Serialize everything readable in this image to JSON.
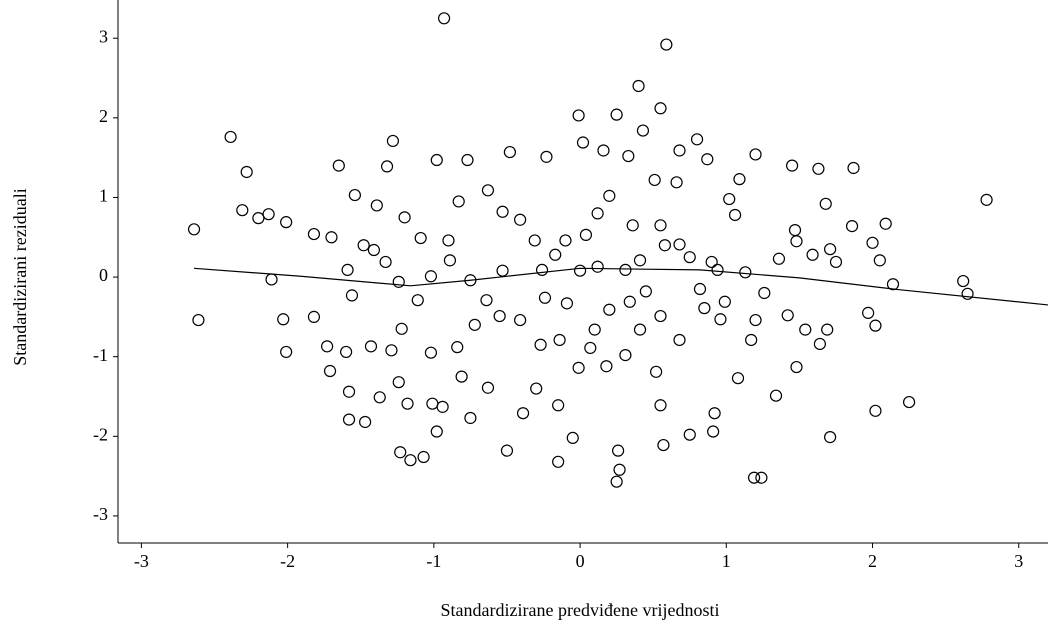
{
  "chart_data": {
    "type": "scatter",
    "x_label": "Standardizirane predviđene vrijednosti",
    "y_label": "Standardizirani reziduali",
    "xlim": [
      -3.16,
      3.2
    ],
    "ylim": [
      -3.34,
      3.48
    ],
    "xticks": [
      -3,
      -2,
      -1,
      0,
      1,
      2,
      3
    ],
    "yticks": [
      -3,
      -2,
      -1,
      0,
      1,
      2,
      3
    ],
    "color": "#000000",
    "marker": "open-circle",
    "x": [
      -2.64,
      -2.61,
      -2.39,
      -2.28,
      -2.31,
      -2.2,
      -2.13,
      -2.01,
      -2.11,
      -2.03,
      -2.01,
      -1.82,
      -0.93,
      0.59,
      0.4,
      -0.01,
      0.25,
      0.55,
      -1.65,
      -1.28,
      -1.32,
      -0.98,
      -0.77,
      -0.48,
      -0.23,
      0.02,
      0.16,
      0.33,
      0.43,
      0.68,
      0.8,
      0.87,
      1.2,
      1.45,
      1.63,
      1.87,
      1.02,
      1.09,
      2.78,
      1.68,
      1.86,
      2.0,
      2.05,
      2.09,
      2.14,
      1.97,
      2.02,
      2.02,
      2.25,
      2.62,
      2.65,
      1.71,
      1.19,
      1.24,
      0.25,
      0.27,
      0.26,
      -0.15,
      -0.5,
      -0.05,
      -1.16,
      -1.23,
      -1.07,
      -1.18,
      -0.98,
      -0.94,
      -1.01,
      -1.58,
      -1.58,
      -1.47,
      -1.37,
      -1.24,
      -1.71,
      -1.73,
      -1.6,
      -1.43,
      -1.22,
      -1.02,
      -0.84,
      -0.81,
      -0.75,
      -0.63,
      -0.39,
      -0.3,
      -0.15,
      -0.01,
      0.18,
      0.31,
      0.52,
      0.55,
      0.57,
      0.75,
      0.91,
      0.92,
      1.08,
      1.17,
      1.34,
      1.48,
      1.64,
      1.69,
      1.54,
      1.42,
      1.26,
      1.13,
      1.36,
      1.48,
      1.59,
      1.71,
      1.75,
      1.47,
      0.9,
      0.94,
      0.75,
      0.82,
      0.85,
      0.99,
      0.96,
      0.68,
      0.55,
      0.45,
      0.34,
      0.2,
      0.1,
      0.07,
      -0.14,
      -0.27,
      -0.41,
      -0.55,
      -0.64,
      -0.75,
      -0.89,
      -1.02,
      -1.11,
      -1.24,
      -1.33,
      -1.41,
      -1.48,
      -1.56,
      -1.59,
      -1.7,
      -1.54,
      -1.39,
      -1.2,
      -1.09,
      -0.9,
      -0.83,
      -0.63,
      -0.53,
      -0.41,
      -0.31,
      -0.17,
      -0.1,
      0.04,
      0.12,
      0.2,
      0.36,
      0.51,
      0.66,
      0.55,
      0.68,
      0.0,
      0.12,
      0.31,
      -0.26,
      -0.53,
      -0.24,
      -0.09,
      0.41,
      0.58,
      1.06,
      1.2,
      0.41,
      -0.72,
      -1.29,
      -1.82
    ],
    "values": [
      0.6,
      -0.54,
      1.76,
      1.32,
      0.84,
      0.74,
      0.79,
      0.69,
      -0.03,
      -0.53,
      -0.94,
      -0.5,
      3.25,
      2.92,
      2.4,
      2.03,
      2.04,
      2.12,
      1.4,
      1.71,
      1.39,
      1.47,
      1.47,
      1.57,
      1.51,
      1.69,
      1.59,
      1.52,
      1.84,
      1.59,
      1.73,
      1.48,
      1.54,
      1.4,
      1.36,
      1.37,
      0.98,
      1.23,
      0.97,
      0.92,
      0.64,
      0.43,
      0.21,
      0.67,
      -0.09,
      -0.45,
      -0.61,
      -1.68,
      -1.57,
      -0.05,
      -0.21,
      -2.01,
      -2.52,
      -2.52,
      -2.57,
      -2.42,
      -2.18,
      -2.32,
      -2.18,
      -2.02,
      -2.3,
      -2.2,
      -2.26,
      -1.59,
      -1.94,
      -1.63,
      -1.59,
      -1.44,
      -1.79,
      -1.82,
      -1.51,
      -1.32,
      -1.18,
      -0.87,
      -0.94,
      -0.87,
      -0.65,
      -0.95,
      -0.88,
      -1.25,
      -1.77,
      -1.39,
      -1.71,
      -1.4,
      -1.61,
      -1.14,
      -1.12,
      -0.98,
      -1.19,
      -1.61,
      -2.11,
      -1.98,
      -1.94,
      -1.71,
      -1.27,
      -0.79,
      -1.49,
      -1.13,
      -0.84,
      -0.66,
      -0.66,
      -0.48,
      -0.2,
      0.06,
      0.23,
      0.45,
      0.28,
      0.35,
      0.19,
      0.59,
      0.19,
      0.09,
      0.25,
      -0.15,
      -0.39,
      -0.31,
      -0.53,
      -0.79,
      -0.49,
      -0.18,
      -0.31,
      -0.41,
      -0.66,
      -0.89,
      -0.79,
      -0.85,
      -0.54,
      -0.49,
      -0.29,
      -0.04,
      0.21,
      0.01,
      -0.29,
      -0.06,
      0.19,
      0.34,
      0.4,
      -0.23,
      0.09,
      0.5,
      1.03,
      0.9,
      0.75,
      0.49,
      0.46,
      0.95,
      1.09,
      0.82,
      0.72,
      0.46,
      0.28,
      0.46,
      0.53,
      0.8,
      1.02,
      0.65,
      1.22,
      1.19,
      0.65,
      0.41,
      0.08,
      0.13,
      0.09,
      0.09,
      0.08,
      -0.26,
      -0.33,
      0.21,
      0.4,
      0.78,
      -0.54,
      -0.66,
      -0.6,
      -0.92,
      0.54
    ],
    "fit_line": {
      "x": [
        -2.64,
        -1.91,
        -1.16,
        -0.75,
        0,
        0.82,
        1.5,
        2.19,
        3.2
      ],
      "values": [
        0.11,
        0.01,
        -0.11,
        -0.04,
        0.11,
        0.09,
        -0.01,
        -0.16,
        -0.35
      ]
    }
  }
}
